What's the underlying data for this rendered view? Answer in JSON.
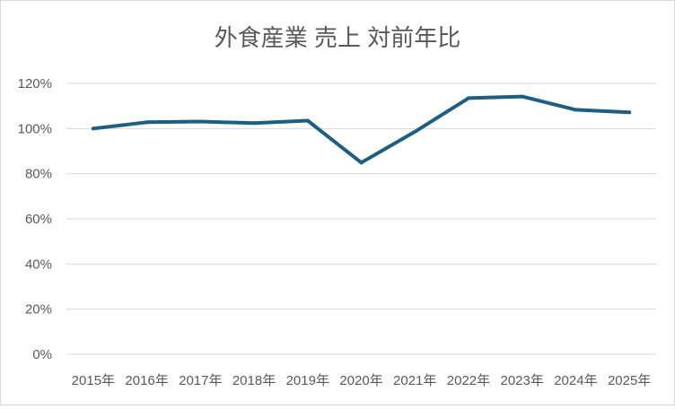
{
  "chart_data": {
    "type": "line",
    "title": "外食産業 売上 対前年比",
    "categories": [
      "2015年",
      "2016年",
      "2017年",
      "2018年",
      "2019年",
      "2020年",
      "2021年",
      "2022年",
      "2023年",
      "2024年",
      "2025年"
    ],
    "series": [
      {
        "values": [
          100.0,
          102.8,
          103.1,
          102.4,
          103.5,
          84.9,
          98.6,
          113.5,
          114.2,
          108.3,
          107.2
        ],
        "color": "#1d5f80"
      }
    ],
    "y_ticks": [
      "0%",
      "20%",
      "40%",
      "60%",
      "80%",
      "100%",
      "120%"
    ],
    "ylim": [
      0,
      120
    ],
    "y_unit": "%",
    "grid": true,
    "legend": "none"
  }
}
